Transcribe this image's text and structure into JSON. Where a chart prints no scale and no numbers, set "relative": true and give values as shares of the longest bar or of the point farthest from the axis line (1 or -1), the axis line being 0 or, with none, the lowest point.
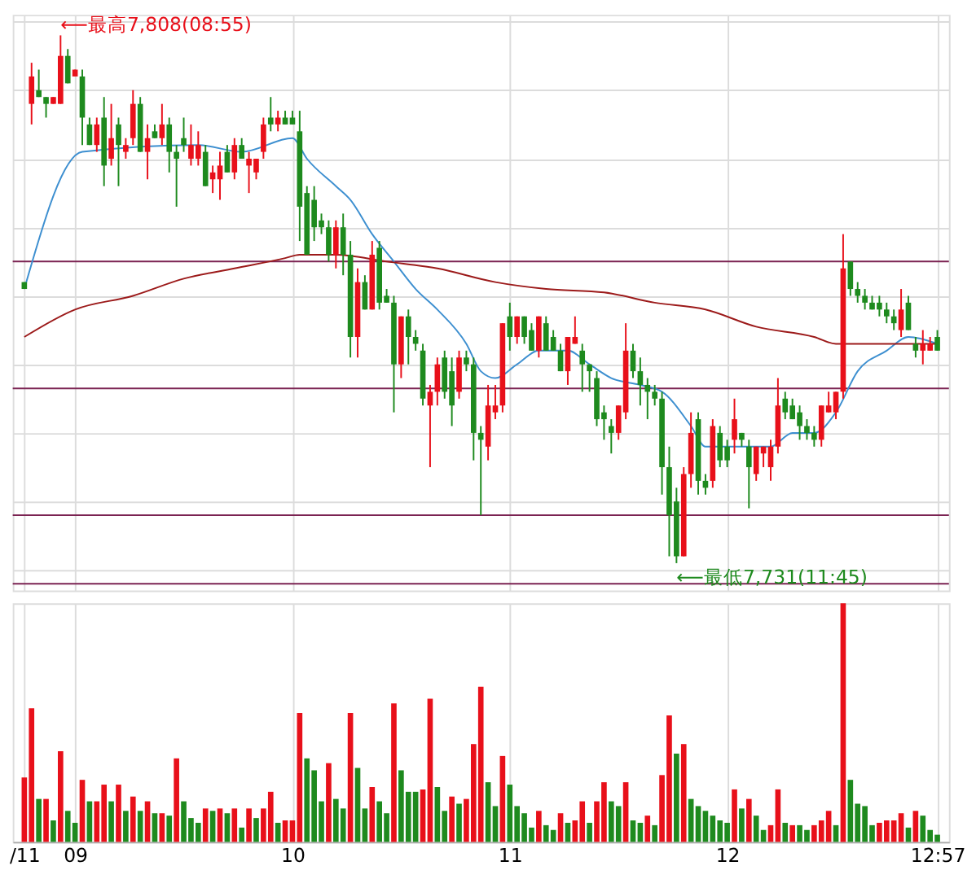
{
  "chart_data": [
    {
      "type": "candlestick",
      "categories": [
        null,
        null,
        null,
        null,
        null,
        null,
        null,
        null,
        null,
        null,
        null,
        null,
        null,
        null,
        null,
        null,
        null,
        null,
        null,
        null,
        null,
        null,
        null,
        null,
        null,
        null,
        null,
        null,
        null,
        null,
        null,
        null,
        null,
        null,
        null,
        null,
        null,
        null,
        null,
        null,
        null,
        null,
        null,
        null,
        null,
        null,
        null,
        null,
        null,
        null,
        null,
        null,
        null,
        null,
        null,
        null,
        null,
        null,
        null,
        null,
        null,
        null,
        null,
        null,
        null,
        null,
        null,
        null,
        null,
        null,
        null,
        null,
        null,
        null,
        null,
        null,
        null,
        null,
        null,
        null,
        null,
        null,
        null,
        null,
        null,
        null,
        null,
        null,
        null,
        null,
        null,
        null,
        null,
        null,
        null,
        null,
        null,
        null,
        null,
        null,
        null,
        null,
        null,
        null,
        null,
        null,
        null,
        null,
        null,
        null,
        null,
        null,
        null,
        null,
        null,
        null,
        null,
        null,
        null,
        null,
        null,
        null,
        null,
        null,
        null,
        null,
        null
      ],
      "ohlc": [
        [
          7772,
          7772,
          7771,
          7771
        ],
        [
          7798,
          7804,
          7795,
          7802
        ],
        [
          7800,
          7803,
          7799,
          7799
        ],
        [
          7799,
          7799,
          7796,
          7798
        ],
        [
          7798,
          7799,
          7798,
          7799
        ],
        [
          7798,
          7808,
          7798,
          7805
        ],
        [
          7805,
          7806,
          7801,
          7801
        ],
        [
          7802,
          7803,
          7802,
          7803
        ],
        [
          7802,
          7803,
          7792,
          7796
        ],
        [
          7795,
          7796,
          7792,
          7792
        ],
        [
          7792,
          7796,
          7791,
          7795
        ],
        [
          7796,
          7799,
          7786,
          7789
        ],
        [
          7790,
          7798,
          7789,
          7793
        ],
        [
          7795,
          7796,
          7786,
          7792
        ],
        [
          7791,
          7793,
          7790,
          7792
        ],
        [
          7793,
          7800,
          7792,
          7798
        ],
        [
          7798,
          7799,
          7791,
          7791
        ],
        [
          7791,
          7795,
          7787,
          7793
        ],
        [
          7794,
          7795,
          7793,
          7793
        ],
        [
          7793,
          7798,
          7792,
          7795
        ],
        [
          7795,
          7796,
          7788,
          7791
        ],
        [
          7791,
          7792,
          7783,
          7790
        ],
        [
          7793,
          7796,
          7791,
          7792
        ],
        [
          7790,
          7795,
          7789,
          7792
        ],
        [
          7790,
          7794,
          7789,
          7792
        ],
        [
          7791,
          7792,
          7786,
          7786
        ],
        [
          7787,
          7789,
          7785,
          7788
        ],
        [
          7787,
          7791,
          7784,
          7789
        ],
        [
          7791,
          7792,
          7788,
          7788
        ],
        [
          7788,
          7793,
          7787,
          7792
        ],
        [
          7792,
          7793,
          7790,
          7790
        ],
        [
          7789,
          7791,
          7785,
          7790
        ],
        [
          7788,
          7790,
          7787,
          7790
        ],
        [
          7791,
          7796,
          7790,
          7795
        ],
        [
          7796,
          7799,
          7794,
          7795
        ],
        [
          7795,
          7797,
          7794,
          7796
        ],
        [
          7796,
          7797,
          7795,
          7795
        ],
        [
          7796,
          7797,
          7795,
          7795
        ],
        [
          7794,
          7797,
          7778,
          7783
        ],
        [
          7785,
          7786,
          7776,
          7776
        ],
        [
          7784,
          7786,
          7778,
          7780
        ],
        [
          7781,
          7782,
          7779,
          7780
        ],
        [
          7780,
          7781,
          7775,
          7776
        ],
        [
          7776,
          7781,
          7774,
          7780
        ],
        [
          7780,
          7782,
          7773,
          7776
        ],
        [
          7776,
          7778,
          7761,
          7764
        ],
        [
          7764,
          7774,
          7761,
          7772
        ],
        [
          7772,
          7773,
          7768,
          7768
        ],
        [
          7768,
          7778,
          7768,
          7776
        ],
        [
          7777,
          7778,
          7768,
          7769
        ],
        [
          7770,
          7771,
          7769,
          7769
        ],
        [
          7769,
          7770,
          7753,
          7760
        ],
        [
          7760,
          7767,
          7758,
          7767
        ],
        [
          7767,
          7768,
          7760,
          7764
        ],
        [
          7764,
          7765,
          7762,
          7763
        ],
        [
          7762,
          7763,
          7754,
          7755
        ],
        [
          7754,
          7757,
          7745,
          7756
        ],
        [
          7756,
          7761,
          7754,
          7760
        ],
        [
          7761,
          7762,
          7755,
          7756
        ],
        [
          7759,
          7761,
          7751,
          7754
        ],
        [
          7756,
          7762,
          7755,
          7761
        ],
        [
          7761,
          7762,
          7759,
          7760
        ],
        [
          7760,
          7761,
          7746,
          7750
        ],
        [
          7750,
          7751,
          7738,
          7749
        ],
        [
          7748,
          7757,
          7746,
          7754
        ],
        [
          7753,
          7757,
          7752,
          7754
        ],
        [
          7754,
          7766,
          7753,
          7766
        ],
        [
          7767,
          7769,
          7762,
          7764
        ],
        [
          7764,
          7767,
          7763,
          7767
        ],
        [
          7767,
          7767,
          7763,
          7764
        ],
        [
          7765,
          7766,
          7762,
          7762
        ],
        [
          7762,
          7767,
          7761,
          7767
        ],
        [
          7766,
          7767,
          7762,
          7762
        ],
        [
          7764,
          7765,
          7762,
          7762
        ],
        [
          7762,
          7763,
          7759,
          7759
        ],
        [
          7759,
          7764,
          7757,
          7764
        ],
        [
          7763,
          7767,
          7763,
          7764
        ],
        [
          7762,
          7763,
          7756,
          7760
        ],
        [
          7760,
          7760,
          7756,
          7759
        ],
        [
          7758,
          7759,
          7751,
          7752
        ],
        [
          7753,
          7754,
          7749,
          7752
        ],
        [
          7751,
          7752,
          7747,
          7750
        ],
        [
          7750,
          7754,
          7749,
          7754
        ],
        [
          7753,
          7766,
          7752,
          7762
        ],
        [
          7762,
          7763,
          7758,
          7759
        ],
        [
          7759,
          7761,
          7754,
          7757
        ],
        [
          7757,
          7758,
          7752,
          7756
        ],
        [
          7756,
          7757,
          7754,
          7755
        ],
        [
          7755,
          7756,
          7741,
          7745
        ],
        [
          7745,
          7748,
          7732,
          7738
        ],
        [
          7740,
          7742,
          7731,
          7732
        ],
        [
          7732,
          7745,
          7732,
          7744
        ],
        [
          7744,
          7753,
          7742,
          7750
        ],
        [
          7752,
          7753,
          7741,
          7743
        ],
        [
          7743,
          7744,
          7741,
          7742
        ],
        [
          7743,
          7752,
          7742,
          7751
        ],
        [
          7750,
          7751,
          7745,
          7746
        ],
        [
          7748,
          7749,
          7745,
          7746
        ],
        [
          7749,
          7755,
          7747,
          7752
        ],
        [
          7750,
          7750,
          7748,
          7749
        ],
        [
          7748,
          7749,
          7739,
          7745
        ],
        [
          7744,
          7748,
          7743,
          7748
        ],
        [
          7747,
          7748,
          7745,
          7748
        ],
        [
          7745,
          7749,
          7743,
          7748
        ],
        [
          7748,
          7758,
          7747,
          7754
        ],
        [
          7755,
          7756,
          7752,
          7753
        ],
        [
          7754,
          7755,
          7752,
          7752
        ],
        [
          7753,
          7754,
          7749,
          7751
        ],
        [
          7751,
          7752,
          7749,
          7750
        ],
        [
          7750,
          7751,
          7748,
          7749
        ],
        [
          7749,
          7754,
          7748,
          7754
        ],
        [
          7753,
          7756,
          7753,
          7754
        ],
        [
          7753,
          7756,
          7752,
          7756
        ],
        [
          7756,
          7779,
          7755,
          7774
        ],
        [
          7775,
          7775,
          7770,
          7771
        ],
        [
          7771,
          7772,
          7769,
          7770
        ],
        [
          7770,
          7771,
          7768,
          7769
        ],
        [
          7769,
          7770,
          7768,
          7768
        ],
        [
          7769,
          7770,
          7767,
          7768
        ],
        [
          7768,
          7769,
          7766,
          7767
        ],
        [
          7767,
          7768,
          7765,
          7766
        ],
        [
          7765,
          7771,
          7764,
          7768
        ],
        [
          7769,
          7770,
          7765,
          7765
        ],
        [
          7763,
          7764,
          7761,
          7762
        ],
        [
          7762,
          7765,
          7760,
          7763
        ],
        [
          7762,
          7764,
          7762,
          7763
        ],
        [
          7764,
          7765,
          7762,
          7762
        ]
      ],
      "colors": [
        "#1e8a1e",
        "#e8101a",
        "#1e8a1e",
        "#1e8a1e",
        "#e8101a",
        "#e8101a",
        "#1e8a1e",
        "#e8101a",
        "#1e8a1e",
        "#1e8a1e",
        "#e8101a",
        "#1e8a1e",
        "#e8101a",
        "#1e8a1e",
        "#e8101a",
        "#e8101a",
        "#1e8a1e",
        "#e8101a",
        "#1e8a1e",
        "#e8101a",
        "#1e8a1e",
        "#1e8a1e",
        "#1e8a1e",
        "#e8101a",
        "#e8101a",
        "#1e8a1e",
        "#e8101a",
        "#e8101a",
        "#1e8a1e",
        "#e8101a",
        "#1e8a1e",
        "#e8101a",
        "#e8101a",
        "#e8101a",
        "#1e8a1e",
        "#e8101a",
        "#1e8a1e",
        "#1e8a1e",
        "#1e8a1e",
        "#1e8a1e",
        "#1e8a1e",
        "#1e8a1e",
        "#1e8a1e",
        "#e8101a",
        "#1e8a1e",
        "#1e8a1e",
        "#e8101a",
        "#1e8a1e",
        "#e8101a",
        "#1e8a1e",
        "#1e8a1e",
        "#1e8a1e",
        "#e8101a",
        "#1e8a1e",
        "#1e8a1e",
        "#1e8a1e",
        "#e8101a",
        "#e8101a",
        "#1e8a1e",
        "#1e8a1e",
        "#e8101a",
        "#1e8a1e",
        "#1e8a1e",
        "#1e8a1e",
        "#e8101a",
        "#e8101a",
        "#e8101a",
        "#1e8a1e",
        "#e8101a",
        "#1e8a1e",
        "#1e8a1e",
        "#e8101a",
        "#1e8a1e",
        "#1e8a1e",
        "#1e8a1e",
        "#e8101a",
        "#e8101a",
        "#1e8a1e",
        "#1e8a1e",
        "#1e8a1e",
        "#1e8a1e",
        "#1e8a1e",
        "#e8101a",
        "#e8101a",
        "#1e8a1e",
        "#1e8a1e",
        "#1e8a1e",
        "#1e8a1e",
        "#1e8a1e",
        "#1e8a1e",
        "#1e8a1e",
        "#e8101a",
        "#e8101a",
        "#1e8a1e",
        "#1e8a1e",
        "#e8101a",
        "#1e8a1e",
        "#1e8a1e",
        "#e8101a",
        "#1e8a1e",
        "#1e8a1e",
        "#e8101a",
        "#e8101a",
        "#e8101a",
        "#e8101a",
        "#1e8a1e",
        "#1e8a1e",
        "#1e8a1e",
        "#1e8a1e",
        "#1e8a1e",
        "#e8101a",
        "#e8101a",
        "#e8101a",
        "#e8101a",
        "#1e8a1e",
        "#1e8a1e",
        "#1e8a1e",
        "#1e8a1e",
        "#1e8a1e",
        "#1e8a1e",
        "#1e8a1e",
        "#e8101a",
        "#1e8a1e",
        "#1e8a1e",
        "#e8101a",
        "#e8101a",
        "#1e8a1e"
      ],
      "series": [
        {
          "type": "line",
          "color": "#3d8fd0",
          "values": [
            7771,
            null,
            null,
            null,
            null,
            null,
            null,
            null,
            7791,
            null,
            null,
            null,
            null,
            null,
            null,
            null,
            null,
            null,
            null,
            null,
            null,
            null,
            null,
            null,
            7792,
            null,
            null,
            null,
            null,
            null,
            7791,
            null,
            null,
            null,
            null,
            null,
            null,
            7793,
            null,
            7790,
            null,
            null,
            null,
            7786,
            null,
            7784,
            null,
            null,
            7779,
            null,
            null,
            7775,
            null,
            null,
            7771,
            null,
            null,
            7768,
            null,
            null,
            null,
            7763,
            null,
            7759,
            null,
            7758,
            null,
            null,
            7760,
            null,
            null,
            7762,
            null,
            null,
            null,
            7762,
            null,
            null,
            7760,
            null,
            null,
            7758,
            null,
            null,
            null,
            7757,
            null,
            null,
            7756,
            null,
            null,
            null,
            7751,
            null,
            7748,
            null,
            null,
            null,
            null,
            7748,
            null,
            null,
            null,
            7748,
            null,
            null,
            7750,
            null,
            null,
            7750,
            null,
            null,
            7753,
            null,
            null,
            7759,
            null,
            null,
            null,
            7762,
            null,
            null,
            7764,
            null,
            null,
            null,
            7763
          ]
        },
        {
          "type": "line",
          "color": "#9c1a1a",
          "values": [
            7764,
            null,
            null,
            null,
            null,
            null,
            null,
            7768,
            null,
            null,
            null,
            null,
            null,
            null,
            null,
            7770,
            null,
            null,
            null,
            null,
            null,
            null,
            7772.5,
            null,
            null,
            null,
            null,
            null,
            null,
            7774,
            null,
            null,
            null,
            null,
            null,
            null,
            7775.5,
            null,
            7776,
            null,
            null,
            null,
            null,
            7776,
            null,
            null,
            null,
            null,
            null,
            null,
            7775,
            null,
            null,
            null,
            null,
            null,
            null,
            7774,
            null,
            null,
            null,
            null,
            null,
            null,
            null,
            7772,
            null,
            null,
            null,
            null,
            null,
            null,
            7771,
            null,
            null,
            null,
            null,
            null,
            null,
            null,
            7770.5,
            null,
            null,
            null,
            null,
            null,
            null,
            7769,
            null,
            null,
            null,
            null,
            null,
            null,
            7768,
            null,
            null,
            null,
            null,
            null,
            null,
            7765.5,
            null,
            null,
            null,
            null,
            null,
            null,
            null,
            7764,
            null,
            null,
            7763,
            null,
            null,
            null,
            null,
            null,
            null,
            7763,
            null,
            null,
            null,
            null,
            null,
            null,
            7763
          ]
        }
      ],
      "ylim": [
        7727,
        7811
      ],
      "yticks": [
        {
          "value": 7730,
          "label": null
        },
        {
          "value": 7740,
          "label": null
        },
        {
          "value": 7750,
          "label": null
        },
        {
          "value": 7760,
          "label": null
        },
        {
          "value": 7770,
          "label": null
        },
        {
          "value": 7780,
          "label": null
        },
        {
          "value": 7790,
          "label": null
        },
        {
          "value": 7800,
          "label": null
        },
        {
          "value": 7810,
          "label": null
        }
      ],
      "ref_lines": [
        {
          "axis": "y",
          "value": 7775,
          "color": "#7b2352"
        },
        {
          "axis": "y",
          "value": 7756.5,
          "color": "#7b2352"
        },
        {
          "axis": "y",
          "value": 7738,
          "color": "#7b2352"
        },
        {
          "axis": "y",
          "value": 7728,
          "color": "#7b2352"
        }
      ],
      "annotations": [
        "⟵最高7,808(08:55)",
        "⟵最低7,731(11:45)"
      ],
      "grid": true,
      "tick_labels": false
    },
    {
      "type": "bar",
      "categories": [
        "/11",
        null,
        null,
        null,
        null,
        null,
        null,
        "09",
        null,
        null,
        null,
        null,
        null,
        null,
        null,
        null,
        null,
        null,
        null,
        null,
        null,
        null,
        null,
        null,
        null,
        null,
        null,
        null,
        null,
        null,
        null,
        null,
        null,
        null,
        null,
        null,
        null,
        "10",
        null,
        null,
        null,
        null,
        null,
        null,
        null,
        null,
        null,
        null,
        null,
        null,
        null,
        null,
        null,
        null,
        null,
        null,
        null,
        null,
        null,
        null,
        null,
        null,
        null,
        null,
        null,
        null,
        null,
        "11",
        null,
        null,
        null,
        null,
        null,
        null,
        null,
        null,
        null,
        null,
        null,
        null,
        null,
        null,
        null,
        null,
        null,
        null,
        null,
        null,
        null,
        null,
        null,
        null,
        null,
        null,
        null,
        null,
        null,
        "12",
        null,
        null,
        null,
        null,
        null,
        null,
        null,
        null,
        null,
        null,
        null,
        null,
        null,
        null,
        null,
        null,
        null,
        null,
        null,
        null,
        null,
        null,
        null,
        null,
        null,
        null,
        null,
        null,
        "12:57"
      ],
      "values": [
        0.27,
        0.56,
        0.18,
        0.18,
        0.09,
        0.38,
        0.13,
        0.08,
        0.26,
        0.17,
        0.17,
        0.24,
        0.17,
        0.24,
        0.13,
        0.19,
        0.13,
        0.17,
        0.12,
        0.12,
        0.11,
        0.35,
        0.17,
        0.1,
        0.08,
        0.14,
        0.13,
        0.14,
        0.12,
        0.14,
        0.06,
        0.14,
        0.1,
        0.14,
        0.21,
        0.08,
        0.09,
        0.09,
        0.54,
        0.35,
        0.3,
        0.17,
        0.33,
        0.18,
        0.14,
        0.54,
        0.31,
        0.14,
        0.23,
        0.17,
        0.12,
        0.58,
        0.3,
        0.21,
        0.21,
        0.22,
        0.6,
        0.23,
        0.13,
        0.19,
        0.16,
        0.18,
        0.41,
        0.65,
        0.25,
        0.15,
        0.36,
        0.24,
        0.15,
        0.12,
        0.06,
        0.13,
        0.07,
        0.05,
        0.12,
        0.08,
        0.09,
        0.17,
        0.08,
        0.17,
        0.25,
        0.17,
        0.15,
        0.25,
        0.09,
        0.08,
        0.11,
        0.07,
        0.28,
        0.53,
        0.37,
        0.41,
        0.18,
        0.15,
        0.13,
        0.11,
        0.09,
        0.08,
        0.22,
        0.14,
        0.18,
        0.11,
        0.05,
        0.07,
        0.22,
        0.08,
        0.07,
        0.07,
        0.05,
        0.07,
        0.09,
        0.13,
        0.07,
        1,
        0.26,
        0.16,
        0.15,
        0.07,
        0.08,
        0.09,
        0.09,
        0.12,
        0.06,
        0.13,
        0.11,
        0.05,
        0.03
      ],
      "colors": [
        "#e8101a",
        "#e8101a",
        "#1e8a1e",
        "#e8101a",
        "#1e8a1e",
        "#e8101a",
        "#1e8a1e",
        "#1e8a1e",
        "#e8101a",
        "#1e8a1e",
        "#e8101a",
        "#e8101a",
        "#1e8a1e",
        "#e8101a",
        "#1e8a1e",
        "#e8101a",
        "#1e8a1e",
        "#e8101a",
        "#1e8a1e",
        "#e8101a",
        "#1e8a1e",
        "#e8101a",
        "#1e8a1e",
        "#1e8a1e",
        "#1e8a1e",
        "#e8101a",
        "#1e8a1e",
        "#e8101a",
        "#1e8a1e",
        "#e8101a",
        "#1e8a1e",
        "#e8101a",
        "#1e8a1e",
        "#e8101a",
        "#e8101a",
        "#1e8a1e",
        "#e8101a",
        "#e8101a",
        "#e8101a",
        "#1e8a1e",
        "#1e8a1e",
        "#1e8a1e",
        "#e8101a",
        "#1e8a1e",
        "#1e8a1e",
        "#e8101a",
        "#1e8a1e",
        "#1e8a1e",
        "#e8101a",
        "#1e8a1e",
        "#1e8a1e",
        "#e8101a",
        "#1e8a1e",
        "#1e8a1e",
        "#1e8a1e",
        "#e8101a",
        "#e8101a",
        "#1e8a1e",
        "#1e8a1e",
        "#e8101a",
        "#1e8a1e",
        "#e8101a",
        "#e8101a",
        "#e8101a",
        "#1e8a1e",
        "#1e8a1e",
        "#e8101a",
        "#1e8a1e",
        "#1e8a1e",
        "#1e8a1e",
        "#1e8a1e",
        "#e8101a",
        "#1e8a1e",
        "#1e8a1e",
        "#e8101a",
        "#1e8a1e",
        "#e8101a",
        "#e8101a",
        "#1e8a1e",
        "#e8101a",
        "#e8101a",
        "#1e8a1e",
        "#1e8a1e",
        "#e8101a",
        "#1e8a1e",
        "#1e8a1e",
        "#e8101a",
        "#1e8a1e",
        "#e8101a",
        "#e8101a",
        "#1e8a1e",
        "#e8101a",
        "#1e8a1e",
        "#1e8a1e",
        "#1e8a1e",
        "#1e8a1e",
        "#1e8a1e",
        "#1e8a1e",
        "#e8101a",
        "#1e8a1e",
        "#e8101a",
        "#1e8a1e",
        "#1e8a1e",
        "#e8101a",
        "#e8101a",
        "#1e8a1e",
        "#e8101a",
        "#1e8a1e",
        "#1e8a1e",
        "#e8101a",
        "#e8101a",
        "#e8101a",
        "#1e8a1e",
        "#e8101a",
        "#1e8a1e",
        "#1e8a1e",
        "#1e8a1e",
        "#1e8a1e",
        "#e8101a",
        "#e8101a",
        "#e8101a",
        "#e8101a",
        "#1e8a1e",
        "#e8101a",
        "#1e8a1e",
        "#1e8a1e",
        "#1e8a1e"
      ],
      "relative": true,
      "grid": "x",
      "tick_labels": "x"
    }
  ]
}
